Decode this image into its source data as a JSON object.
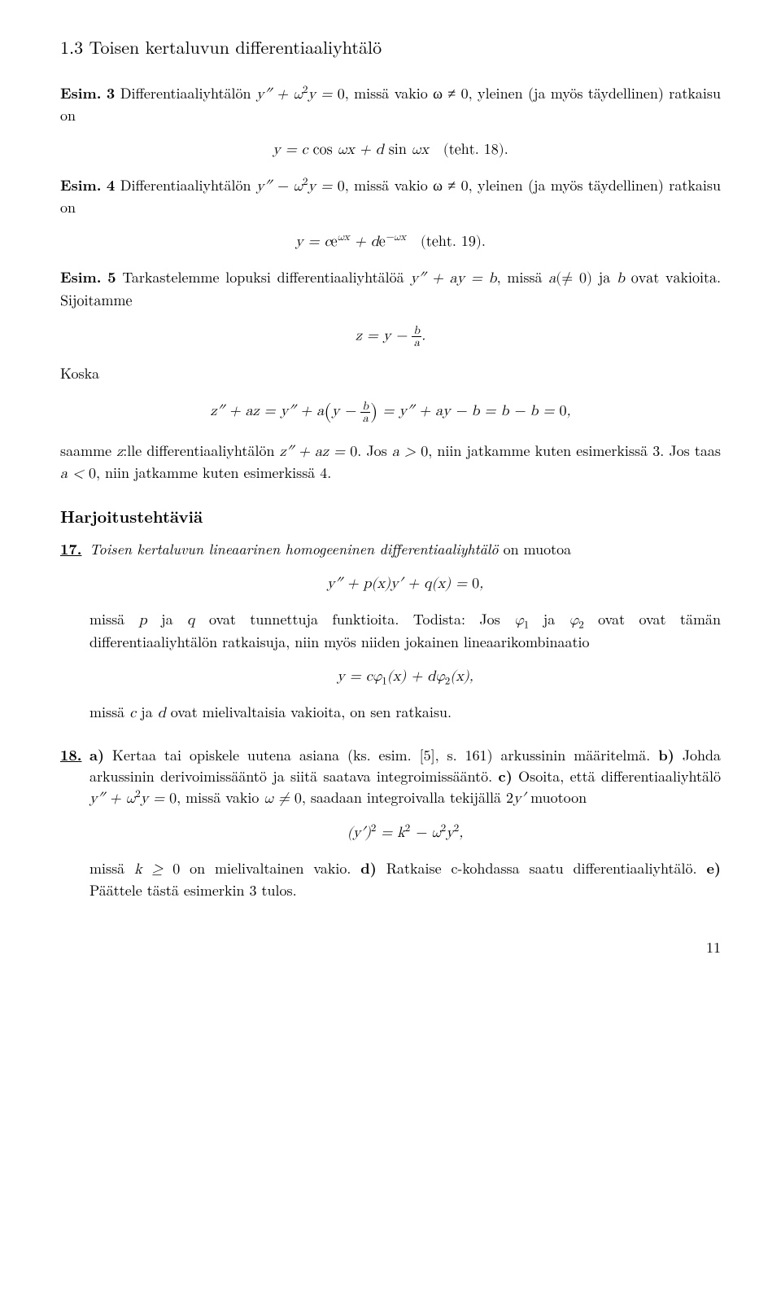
{
  "section_heading": "1.3 Toisen kertaluvun differentiaaliyhtälö",
  "esim3": {
    "label": "Esim.",
    "num": "3",
    "lead_a": "Differentiaaliyhtälön",
    "eq_inline": "y″ + ω²y = 0",
    "lead_b": ", missä vakio ω ≠ 0, yleinen (ja myös täydellinen) ratkaisu on",
    "display": "y = c cos ωx + d sin ωx   (teht. 18)."
  },
  "esim4": {
    "label": "Esim.",
    "num": "4",
    "lead_a": "Differentiaaliyhtälön",
    "eq_inline": "y″ − ω²y = 0",
    "lead_b": ", missä vakio ω ≠ 0, yleinen (ja myös täydellinen) ratkaisu on",
    "display_lhs": "y = ce",
    "display_sup1": "ωx",
    "display_mid": " + de",
    "display_sup2": "−ωx",
    "display_tail": "   (teht. 19)."
  },
  "esim5": {
    "label": "Esim.",
    "num": "5",
    "lead_a": "Tarkastelemme lopuksi differentiaaliyhtälöä",
    "eq_inline": "y″ + ay = b",
    "lead_b": ", missä",
    "lead_c": "a(≠ 0) ja b ovat vakioita. Sijoitamme",
    "display1_pre": "z = y − ",
    "display1_num": "b",
    "display1_den": "a",
    "display1_post": ".",
    "koska": "Koska",
    "chain_1": "z″ + az = y″ + a",
    "chain_paren_pre": "y − ",
    "chain_paren_num": "b",
    "chain_paren_den": "a",
    "chain_2": " = y″ + ay − b = b − b = 0,",
    "tail": "saamme z:lle differentiaaliyhtälön z″ + az = 0. Jos a > 0, niin jatkamme kuten esimerkissä 3. Jos taas a < 0, niin jatkamme kuten esimerkissä 4."
  },
  "exercises_heading": "Harjoitustehtäviä",
  "ex17": {
    "num": "17.",
    "intro_a": "Toisen kertaluvun lineaarinen homogeeninen differentiaaliyhtälö",
    "intro_b": " on muotoa",
    "display": "y″ + p(x)y′ + q(x) = 0,",
    "para2_a": "missä p ja q ovat tunnettuja funktioita. Todista: Jos ",
    "phi1": "φ₁",
    "para2_b": " ja ",
    "phi2": "φ₂",
    "para2_c": " ovat ovat tämän differentiaaliyhtälön ratkaisuja, niin myös niiden jokainen lineaarikombinaatio",
    "display2": "y = cφ₁(x) + dφ₂(x),",
    "para3": "missä c ja d ovat mielivaltaisia vakioita, on sen ratkaisu."
  },
  "ex18": {
    "num": "18.",
    "a_label": "a)",
    "a_text": " Kertaa tai opiskele uutena asiana (ks. esim. [5], s. 161) arkussinin määritelmä. ",
    "b_label": "b)",
    "b_text": " Johda arkussinin derivoimissääntö ja siitä saatava integroimissääntö. ",
    "c_label": "c)",
    "c_text_a": " Osoita, että differentiaaliyhtälö ",
    "c_eq": "y″ + ω²y = 0",
    "c_text_b": ", missä vakio ω ≠ 0, saadaan integroivalla tekijällä ",
    "c_factor": "2y′",
    "c_text_c": " muotoon",
    "display": "(y′)² = k² − ω²y²,",
    "tail_a": "missä k ≥ 0 on mielivaltainen vakio. ",
    "d_label": "d)",
    "d_text": " Ratkaise c-kohdassa saatu differentiaaliyhtälö. ",
    "e_label": "e)",
    "e_text": " Päättele tästä esimerkin 3 tulos."
  },
  "page_number": "11"
}
